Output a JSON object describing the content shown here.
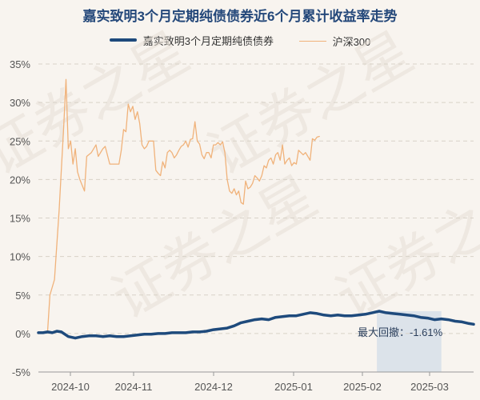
{
  "chart_data": {
    "type": "line",
    "title": "嘉实致明3个月定期纯债债券近6个月累计收益率走势",
    "xlabel": "",
    "ylabel": "",
    "x_ticks": [
      "2024-10",
      "2024-11",
      "2024-12",
      "2025-01",
      "2025-02",
      "2025-03"
    ],
    "y_ticks": [
      "35%",
      "30%",
      "25%",
      "20%",
      "15%",
      "10%",
      "5%",
      "0%",
      "-5%"
    ],
    "ylim": [
      -5,
      35
    ],
    "grid": true,
    "legend_position": "top",
    "series": [
      {
        "name": "嘉实致明3个月定期纯债债券",
        "color": "#1e4a7c",
        "points": [
          [
            0,
            0.1
          ],
          [
            2,
            0.1
          ],
          [
            4,
            0.2
          ],
          [
            6,
            0.1
          ],
          [
            8,
            0.3
          ],
          [
            10,
            0.2
          ],
          [
            13,
            -0.4
          ],
          [
            16,
            -0.6
          ],
          [
            19,
            -0.4
          ],
          [
            22,
            -0.3
          ],
          [
            25,
            -0.3
          ],
          [
            28,
            -0.4
          ],
          [
            31,
            -0.3
          ],
          [
            34,
            -0.4
          ],
          [
            37,
            -0.4
          ],
          [
            40,
            -0.3
          ],
          [
            43,
            -0.2
          ],
          [
            46,
            -0.1
          ],
          [
            49,
            -0.1
          ],
          [
            52,
            0
          ],
          [
            55,
            0
          ],
          [
            58,
            0.1
          ],
          [
            61,
            0.1
          ],
          [
            64,
            0.1
          ],
          [
            67,
            0.2
          ],
          [
            70,
            0.2
          ],
          [
            73,
            0.3
          ],
          [
            76,
            0.5
          ],
          [
            79,
            0.6
          ],
          [
            82,
            0.7
          ],
          [
            85,
            1
          ],
          [
            88,
            1.4
          ],
          [
            91,
            1.6
          ],
          [
            94,
            1.8
          ],
          [
            97,
            1.9
          ],
          [
            100,
            1.8
          ],
          [
            103,
            2.1
          ],
          [
            106,
            2.2
          ],
          [
            109,
            2.3
          ],
          [
            112,
            2.3
          ],
          [
            115,
            2.5
          ],
          [
            118,
            2.7
          ],
          [
            121,
            2.6
          ],
          [
            124,
            2.4
          ],
          [
            127,
            2.3
          ],
          [
            130,
            2.4
          ],
          [
            133,
            2.3
          ],
          [
            136,
            2.3
          ],
          [
            139,
            2.4
          ],
          [
            142,
            2.5
          ],
          [
            145,
            2.7
          ],
          [
            148,
            2.9
          ],
          [
            151,
            2.7
          ],
          [
            154,
            2.6
          ],
          [
            157,
            2.5
          ],
          [
            160,
            2.4
          ],
          [
            163,
            2.3
          ],
          [
            166,
            2.1
          ],
          [
            169,
            2
          ],
          [
            172,
            1.8
          ],
          [
            175,
            1.9
          ],
          [
            178,
            1.8
          ],
          [
            181,
            1.6
          ],
          [
            184,
            1.5
          ],
          [
            187,
            1.3
          ],
          [
            189,
            1.2
          ]
        ]
      },
      {
        "name": "沪深300",
        "color": "#f0b27a",
        "points": [
          [
            0,
            0
          ],
          [
            2,
            0.1
          ],
          [
            4,
            0.3
          ],
          [
            5,
            5
          ],
          [
            7,
            7
          ],
          [
            9,
            16
          ],
          [
            11,
            27
          ],
          [
            12,
            33
          ],
          [
            13,
            24
          ],
          [
            14,
            25
          ],
          [
            15,
            22
          ],
          [
            16,
            24
          ],
          [
            17,
            21
          ],
          [
            18,
            20
          ],
          [
            20,
            18.5
          ],
          [
            21,
            23
          ],
          [
            23,
            23.5
          ],
          [
            25,
            24.5
          ],
          [
            26,
            23
          ],
          [
            28,
            24
          ],
          [
            29,
            24.3
          ],
          [
            31,
            22
          ],
          [
            33,
            22
          ],
          [
            35,
            22
          ],
          [
            36,
            23.8
          ],
          [
            37,
            26.5
          ],
          [
            38,
            26.2
          ],
          [
            39,
            29.8
          ],
          [
            40,
            28.8
          ],
          [
            41,
            29.5
          ],
          [
            42,
            27.8
          ],
          [
            43,
            28.8
          ],
          [
            44,
            27.3
          ],
          [
            45,
            24.5
          ],
          [
            46,
            24
          ],
          [
            47,
            24.3
          ],
          [
            48,
            25
          ],
          [
            50,
            25
          ],
          [
            51,
            21.2
          ],
          [
            52,
            20.8
          ],
          [
            53,
            20.5
          ],
          [
            54,
            22.3
          ],
          [
            55,
            21.5
          ],
          [
            56,
            23.5
          ],
          [
            57,
            23.8
          ],
          [
            58,
            23.5
          ],
          [
            59,
            22.8
          ],
          [
            60,
            23.2
          ],
          [
            61,
            23.8
          ],
          [
            62,
            24.3
          ],
          [
            63,
            24.5
          ],
          [
            64,
            25
          ],
          [
            65,
            24.2
          ],
          [
            66,
            25.2
          ],
          [
            67,
            25.3
          ],
          [
            68,
            27.5
          ],
          [
            69,
            25
          ],
          [
            70,
            24.6
          ],
          [
            71,
            23.2
          ],
          [
            72,
            22.7
          ],
          [
            73,
            23.5
          ],
          [
            74,
            23.5
          ],
          [
            75,
            22.8
          ],
          [
            76,
            24.5
          ],
          [
            77,
            24.5
          ],
          [
            78,
            24.8
          ],
          [
            79,
            24.5
          ],
          [
            80,
            24.9
          ],
          [
            81,
            23.5
          ],
          [
            82,
            20
          ],
          [
            83,
            18.5
          ],
          [
            84,
            18.2
          ],
          [
            85,
            18.8
          ],
          [
            86,
            18
          ],
          [
            87,
            18.5
          ],
          [
            88,
            17
          ],
          [
            89,
            16.8
          ],
          [
            90,
            19.8
          ],
          [
            91,
            18.8
          ],
          [
            92,
            19
          ],
          [
            93,
            19.5
          ],
          [
            94,
            20.5
          ],
          [
            95,
            20.2
          ],
          [
            96,
            19.8
          ],
          [
            97,
            20.5
          ],
          [
            98,
            21.8
          ],
          [
            99,
            21.5
          ],
          [
            100,
            22.5
          ],
          [
            101,
            22.8
          ],
          [
            102,
            22
          ],
          [
            103,
            23.2
          ],
          [
            104,
            23.5
          ],
          [
            105,
            22.5
          ],
          [
            106,
            24.5
          ],
          [
            107,
            22
          ],
          [
            108,
            22.5
          ],
          [
            109,
            22.8
          ],
          [
            110,
            21.8
          ],
          [
            111,
            22.2
          ],
          [
            112,
            22
          ],
          [
            113,
            23.8
          ],
          [
            114,
            23.5
          ],
          [
            115,
            23.2
          ],
          [
            116,
            23.5
          ],
          [
            117,
            23
          ],
          [
            118,
            22.5
          ],
          [
            119,
            25.3
          ],
          [
            120,
            25.1
          ],
          [
            121,
            25.5
          ],
          [
            122,
            25.6
          ]
        ]
      }
    ],
    "annotation": {
      "text": "最大回撤：-1.61%",
      "x_range": [
        147,
        175
      ]
    },
    "watermark": "证券之星"
  }
}
